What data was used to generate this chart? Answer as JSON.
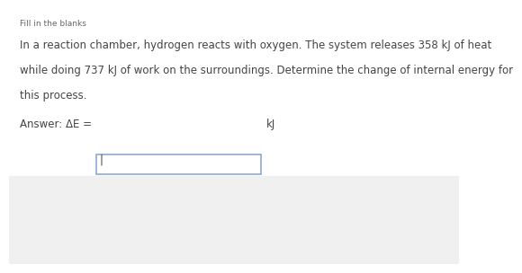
{
  "title": "Fill in the blanks",
  "line1": "In a reaction chamber, hydrogen reacts with oxygen. The system releases 358 kJ of heat",
  "line2": "while doing 737 kJ of work on the surroundings. Determine the change of internal energy for",
  "line3": "this process.",
  "answer_label": "Answer: ΔE = ",
  "answer_unit": "kJ",
  "bg_white": "#ffffff",
  "bg_gray": "#f0f0f0",
  "text_color": "#444444",
  "title_color": "#666666",
  "box_border_color": "#8baad6",
  "title_fontsize": 6.5,
  "body_fontsize": 8.5,
  "answer_fontsize": 8.5,
  "gray_split": 0.345
}
